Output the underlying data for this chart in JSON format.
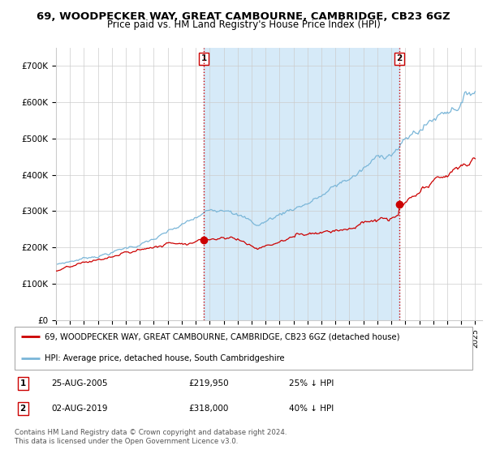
{
  "title": "69, WOODPECKER WAY, GREAT CAMBOURNE, CAMBRIDGE, CB23 6GZ",
  "subtitle": "Price paid vs. HM Land Registry's House Price Index (HPI)",
  "ylim": [
    0,
    750000
  ],
  "yticks": [
    0,
    100000,
    200000,
    300000,
    400000,
    500000,
    600000,
    700000
  ],
  "ytick_labels": [
    "£0",
    "£100K",
    "£200K",
    "£300K",
    "£400K",
    "£500K",
    "£600K",
    "£700K"
  ],
  "hpi_color": "#7ab6d8",
  "price_color": "#cc0000",
  "vline_color": "#cc0000",
  "fill_color": "#d6eaf8",
  "background_color": "#ffffff",
  "legend_entry_1": "69, WOODPECKER WAY, GREAT CAMBOURNE, CAMBRIDGE, CB23 6GZ (detached house)",
  "legend_entry_2": "HPI: Average price, detached house, South Cambridgeshire",
  "annotation_1_label": "1",
  "annotation_1_date": "25-AUG-2005",
  "annotation_1_price": "£219,950",
  "annotation_1_hpi": "25% ↓ HPI",
  "annotation_2_label": "2",
  "annotation_2_date": "02-AUG-2019",
  "annotation_2_price": "£318,000",
  "annotation_2_hpi": "40% ↓ HPI",
  "footer": "Contains HM Land Registry data © Crown copyright and database right 2024.\nThis data is licensed under the Open Government Licence v3.0.",
  "sale1_year_f": 2005.583,
  "sale1_price": 219950,
  "sale2_year_f": 2019.583,
  "sale2_price": 318000
}
